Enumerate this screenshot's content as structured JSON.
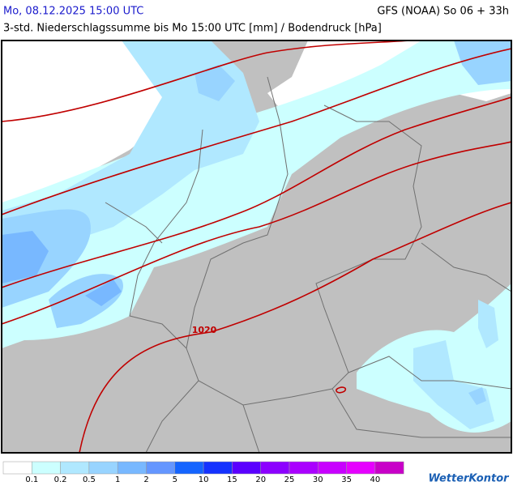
{
  "header": {
    "title": "Mo, 08.12.2025 15:00 UTC",
    "model": "GFS (NOAA) So 06 + 33h",
    "subtitle": "3-std. Niederschlagssumme bis Mo 15:00 UTC [mm] / Bodendruck [hPa]"
  },
  "map": {
    "isobar_label": "1020"
  },
  "legend": {
    "colors": [
      "#ffffff",
      "#ccffff",
      "#b0e8ff",
      "#98d4ff",
      "#78b8ff",
      "#6496ff",
      "#1464ff",
      "#1432ff",
      "#5a00ff",
      "#8c00ff",
      "#aa00ff",
      "#c800ff",
      "#e600ff",
      "#c800c8"
    ],
    "ticks": [
      0.1,
      0.2,
      0.5,
      1,
      2,
      5,
      10,
      15,
      20,
      25,
      30,
      35,
      40
    ]
  },
  "brand": "WetterKontor"
}
